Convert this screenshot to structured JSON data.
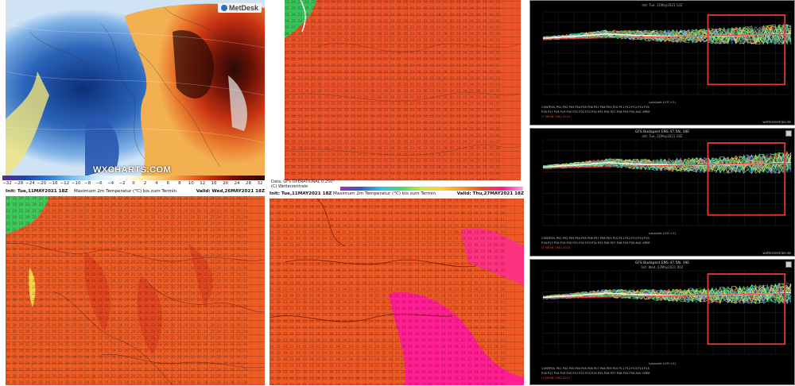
{
  "panel_a": {
    "brand": "MetDesk",
    "watermark": "WXCHARTS.COM",
    "scale_ticks": [
      "−32",
      "−28",
      "−24",
      "−20",
      "−16",
      "−12",
      "−10",
      "−8",
      "−6",
      "−4",
      "−2",
      "0",
      "2",
      "4",
      "6",
      "8",
      "10",
      "12",
      "16",
      "20",
      "24",
      "28",
      "32"
    ]
  },
  "panel_c": {
    "init": "Init: Tue,11MAY2021 18Z",
    "title": "Maximum 2m Temperatur (°C) bis zum Termin",
    "valid": "Valid: Wed,26MAY2021 18Z"
  },
  "panel_d": {
    "data_line": "Data: GFS OPERATIONAL 0.250°",
    "credit": "(C) Wetterzentrale",
    "init": "Init: Tue,11MAY2021 18Z",
    "title": "Maximum 2m Temperatur (°C) bis zum Termin",
    "valid": "Valid: Thu,27MAY2021 18Z"
  },
  "charts": [
    {
      "title": "",
      "init": "Init: Tue, 11May2021 12Z",
      "xlabel": "Lokalzeit (UTC+2)",
      "legend1": "CONTROL  P01  P02  P03  P04  P05  P06  P07  P08  P09  P10  P11  P12  P13  P14  P15",
      "legend2": "P16  P17  P18  P19  P20  P21  P22  P23  P24  P25  P26  P27  P28  P29  P30  AVG  OPER",
      "legend3": "LT MEAN 1981-2010",
      "watermark": "wetterzentrale.de"
    },
    {
      "title": "GFS Budapest ENS 47.5N, 19E",
      "init": "Init: Tue, 11May2021 18Z",
      "xlabel": "Lokalzeit (UTC+2)",
      "legend1": "CONTROL  P01  P02  P03  P04  P05  P06  P07  P08  P09  P10  P11  P12  P13  P14  P15",
      "legend2": "P16  P17  P18  P19  P20  P21  P22  P23  P24  P25  P26  P27  P28  P29  P30  AVG  OPER",
      "legend3": "LT MEAN 1981-2010",
      "watermark": "wetterzentrale.de"
    },
    {
      "title": "GFS Budapest ENS 47.5N, 19E",
      "init": "Init: Wed, 12May2021 00Z",
      "xlabel": "Lokalzeit (UTC+2)",
      "legend1": "CONTROL  P01  P02  P03  P04  P05  P06  P07  P08  P09  P10  P11  P12  P13  P14  P15",
      "legend2": "P16  P17  P18  P19  P20  P21  P22  P23  P24  P25  P26  P27  P28  P29  P30  AVG  OPER",
      "legend3": "LT MEAN 1981-2010",
      "watermark": "wetterzentrale.de"
    }
  ],
  "colors": {
    "map_red": "#e2401f",
    "map_orange": "#f06a2a",
    "map_magenta": "#ff1a8c",
    "highlight_box": "#e53935"
  }
}
